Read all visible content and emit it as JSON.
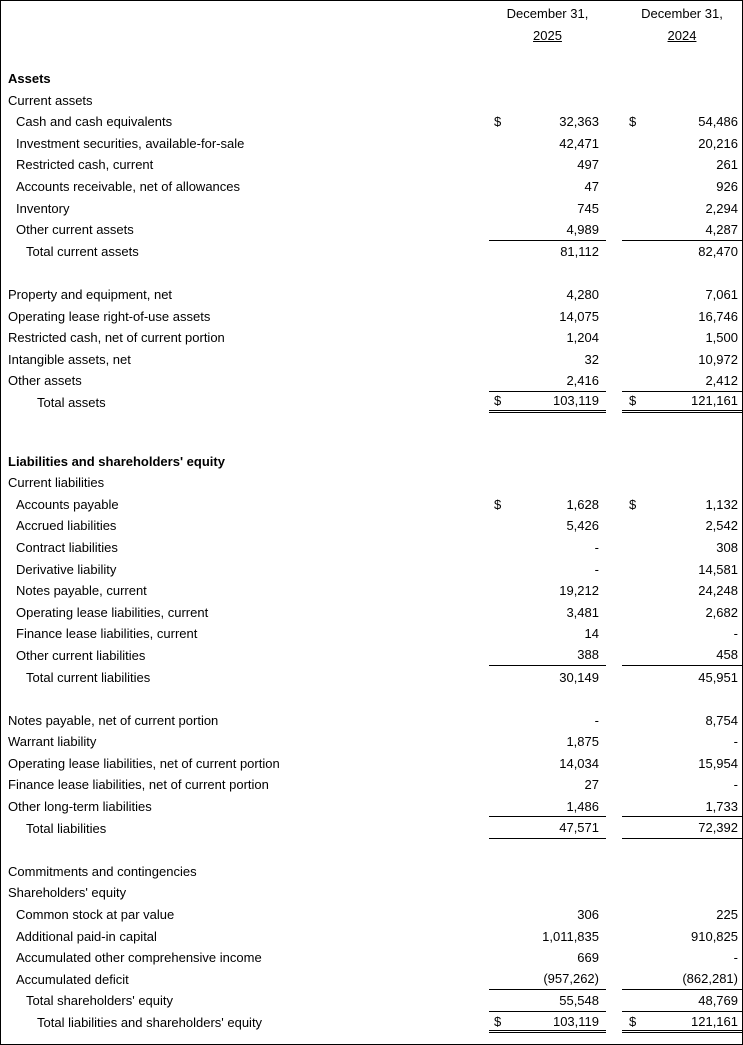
{
  "currency_symbol": "$",
  "columns": [
    {
      "line1": "December 31,",
      "line2": "2025"
    },
    {
      "line1": "December 31,",
      "line2": "2024"
    }
  ],
  "rows": [
    {
      "type": "spacer"
    },
    {
      "type": "item",
      "indent": 0,
      "bold": true,
      "label": "Assets"
    },
    {
      "type": "item",
      "indent": 0,
      "label": "Current assets"
    },
    {
      "type": "item",
      "indent": 1,
      "label": "Cash and cash equivalents",
      "dollar": true,
      "v2025": "32,363",
      "v2024": "54,486"
    },
    {
      "type": "item",
      "indent": 1,
      "label": "Investment securities, available-for-sale",
      "v2025": "42,471",
      "v2024": "20,216"
    },
    {
      "type": "item",
      "indent": 1,
      "label": "Restricted cash, current",
      "v2025": "497",
      "v2024": "261"
    },
    {
      "type": "item",
      "indent": 1,
      "label": "Accounts receivable, net of allowances",
      "v2025": "47",
      "v2024": "926"
    },
    {
      "type": "item",
      "indent": 1,
      "label": "Inventory",
      "v2025": "745",
      "v2024": "2,294"
    },
    {
      "type": "item",
      "indent": 1,
      "label": "Other current assets",
      "v2025": "4,989",
      "v2024": "4,287",
      "bottom_border": "single"
    },
    {
      "type": "item",
      "indent": 2,
      "label": "Total current assets",
      "v2025": "81,112",
      "v2024": "82,470"
    },
    {
      "type": "spacer"
    },
    {
      "type": "item",
      "indent": 0,
      "label": "Property and equipment, net",
      "v2025": "4,280",
      "v2024": "7,061"
    },
    {
      "type": "item",
      "indent": 0,
      "label": "Operating lease right-of-use assets",
      "v2025": "14,075",
      "v2024": "16,746"
    },
    {
      "type": "item",
      "indent": 0,
      "label": "Restricted cash, net of current portion",
      "v2025": "1,204",
      "v2024": "1,500"
    },
    {
      "type": "item",
      "indent": 0,
      "label": "Intangible assets, net",
      "v2025": "32",
      "v2024": "10,972"
    },
    {
      "type": "item",
      "indent": 0,
      "label": "Other assets",
      "v2025": "2,416",
      "v2024": "2,412",
      "bottom_border": "single"
    },
    {
      "type": "item",
      "indent": 3,
      "label": "Total assets",
      "dollar": true,
      "v2025": "103,119",
      "v2024": "121,161",
      "bottom_border": "double"
    },
    {
      "type": "spacer-lg"
    },
    {
      "type": "item",
      "indent": 0,
      "bold": true,
      "label": "Liabilities and shareholders' equity"
    },
    {
      "type": "item",
      "indent": 0,
      "label": "Current liabilities"
    },
    {
      "type": "item",
      "indent": 1,
      "label": "Accounts payable",
      "dollar": true,
      "v2025": "1,628",
      "v2024": "1,132"
    },
    {
      "type": "item",
      "indent": 1,
      "label": "Accrued liabilities",
      "v2025": "5,426",
      "v2024": "2,542"
    },
    {
      "type": "item",
      "indent": 1,
      "label": "Contract liabilities",
      "v2025": "-",
      "v2024": "308"
    },
    {
      "type": "item",
      "indent": 1,
      "label": "Derivative liability",
      "v2025": "-",
      "v2024": "14,581"
    },
    {
      "type": "item",
      "indent": 1,
      "label": "Notes payable, current",
      "v2025": "19,212",
      "v2024": "24,248"
    },
    {
      "type": "item",
      "indent": 1,
      "label": "Operating lease liabilities, current",
      "v2025": "3,481",
      "v2024": "2,682"
    },
    {
      "type": "item",
      "indent": 1,
      "label": "Finance lease liabilities, current",
      "v2025": "14",
      "v2024": "-"
    },
    {
      "type": "item",
      "indent": 1,
      "label": "Other current liabilities",
      "v2025": "388",
      "v2024": "458",
      "bottom_border": "single"
    },
    {
      "type": "item",
      "indent": 2,
      "label": "Total current liabilities",
      "v2025": "30,149",
      "v2024": "45,951"
    },
    {
      "type": "spacer"
    },
    {
      "type": "item",
      "indent": 0,
      "label": "Notes payable, net of current portion",
      "v2025": "-",
      "v2024": "8,754"
    },
    {
      "type": "item",
      "indent": 0,
      "label": "Warrant liability",
      "v2025": "1,875",
      "v2024": "-"
    },
    {
      "type": "item",
      "indent": 0,
      "label": "Operating lease liabilities, net of current portion",
      "v2025": "14,034",
      "v2024": "15,954"
    },
    {
      "type": "item",
      "indent": 0,
      "label": "Finance lease liabilities, net of current portion",
      "v2025": "27",
      "v2024": "-"
    },
    {
      "type": "item",
      "indent": 0,
      "label": "Other long-term liabilities",
      "v2025": "1,486",
      "v2024": "1,733",
      "bottom_border": "single"
    },
    {
      "type": "item",
      "indent": 2,
      "label": "Total liabilities",
      "v2025": "47,571",
      "v2024": "72,392",
      "bottom_border": "single"
    },
    {
      "type": "spacer"
    },
    {
      "type": "item",
      "indent": 0,
      "label": "Commitments and contingencies"
    },
    {
      "type": "item",
      "indent": 0,
      "label": "Shareholders' equity"
    },
    {
      "type": "item",
      "indent": 1,
      "label": "Common stock at par value",
      "v2025": "306",
      "v2024": "225"
    },
    {
      "type": "item",
      "indent": 1,
      "label": "Additional paid-in capital",
      "v2025": "1,011,835",
      "v2024": "910,825"
    },
    {
      "type": "item",
      "indent": 1,
      "label": "Accumulated other comprehensive income",
      "v2025": "669",
      "v2024": "-"
    },
    {
      "type": "item",
      "indent": 1,
      "label": "Accumulated deficit",
      "v2025": "(957,262)",
      "v2024": "(862,281)",
      "bottom_border": "single"
    },
    {
      "type": "item",
      "indent": 2,
      "label": "Total shareholders' equity",
      "v2025": "55,548",
      "v2024": "48,769",
      "bottom_border": "single"
    },
    {
      "type": "item",
      "indent": 3,
      "label": "Total liabilities and shareholders' equity",
      "dollar": true,
      "v2025": "103,119",
      "v2024": "121,161",
      "bottom_border": "double"
    }
  ]
}
